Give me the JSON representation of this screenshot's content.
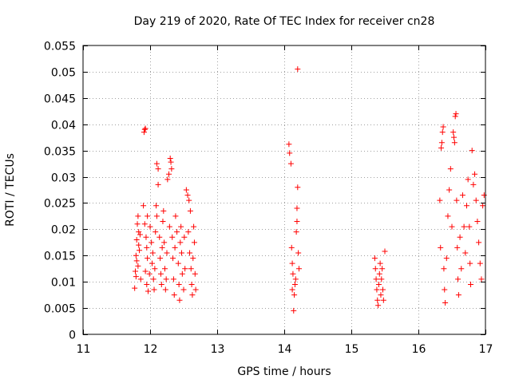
{
  "chart_data": {
    "type": "scatter",
    "title": "Day 219 of 2020, Rate Of TEC Index for receiver cn28",
    "xlabel": "GPS time / hours",
    "ylabel": "ROTI / TECUs",
    "xlim": [
      11,
      17
    ],
    "ylim": [
      0,
      0.055
    ],
    "xticks": [
      11,
      12,
      13,
      14,
      15,
      16,
      17
    ],
    "xtick_labels": [
      "11",
      "12",
      "13",
      "14",
      "15",
      "16",
      "17"
    ],
    "yticks": [
      0,
      0.005,
      0.01,
      0.015,
      0.02,
      0.025,
      0.03,
      0.035,
      0.04,
      0.045,
      0.05,
      0.055
    ],
    "ytick_labels": [
      "0",
      "0.005",
      "0.01",
      "0.015",
      "0.02",
      "0.025",
      "0.03",
      "0.035",
      "0.04",
      "0.045",
      "0.05",
      "0.055"
    ],
    "grid": true,
    "marker": "+",
    "color": "#ff0000",
    "series": [
      {
        "name": "ROTI",
        "points": [
          [
            11.77,
            0.0088
          ],
          [
            11.78,
            0.012
          ],
          [
            11.79,
            0.015
          ],
          [
            11.8,
            0.018
          ],
          [
            11.81,
            0.021
          ],
          [
            11.82,
            0.0225
          ],
          [
            11.83,
            0.017
          ],
          [
            11.8,
            0.014
          ],
          [
            11.82,
            0.013
          ],
          [
            11.84,
            0.016
          ],
          [
            11.85,
            0.019
          ],
          [
            11.86,
            0.0105
          ],
          [
            11.79,
            0.011
          ],
          [
            11.83,
            0.0195
          ],
          [
            11.91,
            0.0385
          ],
          [
            11.92,
            0.039
          ],
          [
            11.93,
            0.0392
          ],
          [
            11.9,
            0.0245
          ],
          [
            11.92,
            0.021
          ],
          [
            11.94,
            0.0185
          ],
          [
            11.95,
            0.0165
          ],
          [
            11.96,
            0.0145
          ],
          [
            11.93,
            0.012
          ],
          [
            11.95,
            0.0095
          ],
          [
            11.97,
            0.0082
          ],
          [
            11.99,
            0.0115
          ],
          [
            11.96,
            0.0225
          ],
          [
            12.0,
            0.0205
          ],
          [
            12.02,
            0.0175
          ],
          [
            12.04,
            0.0155
          ],
          [
            12.03,
            0.0135
          ],
          [
            12.05,
            0.0105
          ],
          [
            12.06,
            0.0085
          ],
          [
            12.07,
            0.0125
          ],
          [
            12.08,
            0.0195
          ],
          [
            12.09,
            0.0245
          ],
          [
            12.1,
            0.0225
          ],
          [
            12.1,
            0.0325
          ],
          [
            12.12,
            0.0315
          ],
          [
            12.12,
            0.0285
          ],
          [
            12.14,
            0.0185
          ],
          [
            12.15,
            0.0145
          ],
          [
            12.16,
            0.0115
          ],
          [
            12.17,
            0.0095
          ],
          [
            12.18,
            0.0165
          ],
          [
            12.19,
            0.0215
          ],
          [
            12.2,
            0.0235
          ],
          [
            12.21,
            0.0175
          ],
          [
            12.22,
            0.0125
          ],
          [
            12.23,
            0.0085
          ],
          [
            12.24,
            0.0105
          ],
          [
            12.25,
            0.0155
          ],
          [
            12.26,
            0.0295
          ],
          [
            12.28,
            0.0305
          ],
          [
            12.3,
            0.0335
          ],
          [
            12.31,
            0.0328
          ],
          [
            12.32,
            0.0315
          ],
          [
            12.29,
            0.0205
          ],
          [
            12.33,
            0.0185
          ],
          [
            12.34,
            0.0145
          ],
          [
            12.35,
            0.0105
          ],
          [
            12.36,
            0.0075
          ],
          [
            12.37,
            0.0165
          ],
          [
            12.38,
            0.0225
          ],
          [
            12.4,
            0.0195
          ],
          [
            12.42,
            0.0135
          ],
          [
            12.43,
            0.0095
          ],
          [
            12.44,
            0.0065
          ],
          [
            12.45,
            0.0175
          ],
          [
            12.46,
            0.0205
          ],
          [
            12.47,
            0.0155
          ],
          [
            12.48,
            0.0115
          ],
          [
            12.5,
            0.0085
          ],
          [
            12.51,
            0.0185
          ],
          [
            12.52,
            0.0125
          ],
          [
            12.54,
            0.0275
          ],
          [
            12.56,
            0.0265
          ],
          [
            12.58,
            0.0255
          ],
          [
            12.6,
            0.0235
          ],
          [
            12.57,
            0.0195
          ],
          [
            12.59,
            0.0155
          ],
          [
            12.61,
            0.0125
          ],
          [
            12.62,
            0.0095
          ],
          [
            12.63,
            0.0075
          ],
          [
            12.64,
            0.0145
          ],
          [
            12.65,
            0.0205
          ],
          [
            12.66,
            0.0175
          ],
          [
            12.67,
            0.0115
          ],
          [
            12.68,
            0.0085
          ],
          [
            14.07,
            0.0362
          ],
          [
            14.08,
            0.0345
          ],
          [
            14.1,
            0.0325
          ],
          [
            14.11,
            0.0165
          ],
          [
            14.12,
            0.0135
          ],
          [
            14.13,
            0.0115
          ],
          [
            14.12,
            0.0085
          ],
          [
            14.14,
            0.0045
          ],
          [
            14.15,
            0.0075
          ],
          [
            14.16,
            0.0095
          ],
          [
            14.17,
            0.0105
          ],
          [
            14.18,
            0.0195
          ],
          [
            14.19,
            0.0215
          ],
          [
            14.19,
            0.024
          ],
          [
            14.2,
            0.028
          ],
          [
            14.21,
            0.0155
          ],
          [
            14.22,
            0.0125
          ],
          [
            14.2,
            0.0505
          ],
          [
            15.35,
            0.0145
          ],
          [
            15.36,
            0.0125
          ],
          [
            15.37,
            0.0105
          ],
          [
            15.38,
            0.0085
          ],
          [
            15.39,
            0.0065
          ],
          [
            15.4,
            0.0055
          ],
          [
            15.41,
            0.0095
          ],
          [
            15.42,
            0.0115
          ],
          [
            15.43,
            0.0135
          ],
          [
            15.44,
            0.0075
          ],
          [
            15.45,
            0.0105
          ],
          [
            15.46,
            0.0125
          ],
          [
            15.47,
            0.0085
          ],
          [
            15.48,
            0.0065
          ],
          [
            15.5,
            0.0158
          ],
          [
            16.32,
            0.0255
          ],
          [
            16.33,
            0.0165
          ],
          [
            16.34,
            0.0355
          ],
          [
            16.35,
            0.0365
          ],
          [
            16.36,
            0.0385
          ],
          [
            16.37,
            0.0395
          ],
          [
            16.38,
            0.0125
          ],
          [
            16.39,
            0.0085
          ],
          [
            16.4,
            0.006
          ],
          [
            16.42,
            0.0145
          ],
          [
            16.44,
            0.0225
          ],
          [
            16.46,
            0.0275
          ],
          [
            16.48,
            0.0315
          ],
          [
            16.5,
            0.0205
          ],
          [
            16.52,
            0.0385
          ],
          [
            16.53,
            0.0375
          ],
          [
            16.54,
            0.0365
          ],
          [
            16.55,
            0.0415
          ],
          [
            16.56,
            0.042
          ],
          [
            16.57,
            0.0255
          ],
          [
            16.58,
            0.0165
          ],
          [
            16.59,
            0.0105
          ],
          [
            16.6,
            0.0075
          ],
          [
            16.62,
            0.0185
          ],
          [
            16.64,
            0.0125
          ],
          [
            16.66,
            0.0265
          ],
          [
            16.68,
            0.0205
          ],
          [
            16.7,
            0.0155
          ],
          [
            16.72,
            0.0245
          ],
          [
            16.74,
            0.0295
          ],
          [
            16.76,
            0.0205
          ],
          [
            16.77,
            0.0135
          ],
          [
            16.78,
            0.0095
          ],
          [
            16.8,
            0.035
          ],
          [
            16.82,
            0.0285
          ],
          [
            16.84,
            0.0305
          ],
          [
            16.86,
            0.0255
          ],
          [
            16.88,
            0.0215
          ],
          [
            16.9,
            0.0175
          ],
          [
            16.92,
            0.0135
          ],
          [
            16.94,
            0.0105
          ],
          [
            16.96,
            0.0245
          ],
          [
            16.98,
            0.0265
          ]
        ]
      }
    ]
  }
}
